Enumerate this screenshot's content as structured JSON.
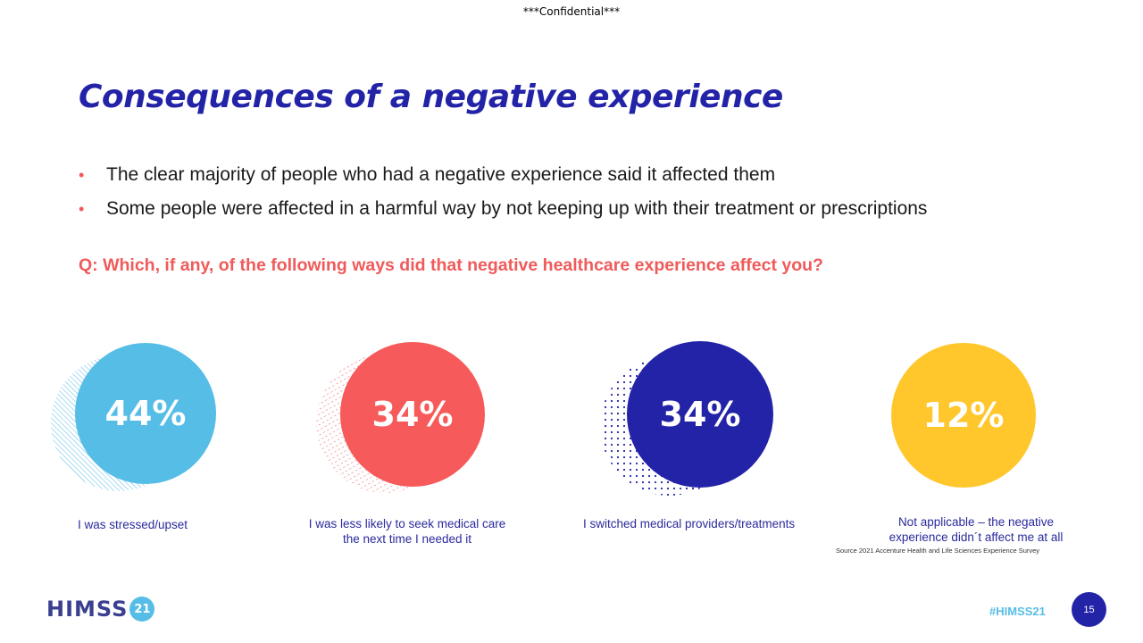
{
  "header": {
    "confidential": "***Confidential***"
  },
  "slide": {
    "title": "Consequences of a negative experience",
    "bullets": [
      "The clear majority of people who had a negative experience said it affected them",
      "Some people were affected in a harmful way by not keeping up with their treatment or prescriptions"
    ],
    "question": "Q: Which, if any, of the following ways did that negative healthcare experience affect you?"
  },
  "stats": [
    {
      "value": "44%",
      "caption": "I was stressed/upset",
      "color": "#56bde6"
    },
    {
      "value": "34%",
      "caption_line1": "I was less likely to seek medical care",
      "caption_line2": "the next time I needed it",
      "color": "#f65a5a"
    },
    {
      "value": "34%",
      "caption": "I switched medical providers/treatments",
      "color": "#2323a8"
    },
    {
      "value": "12%",
      "caption_line1": "Not applicable – the negative",
      "caption_line2": "experience didn´t affect me at all",
      "color": "#ffc72c"
    }
  ],
  "source": "Source 2021 Accenture Health and Life Sciences Experience Survey",
  "footer": {
    "logo_text": "HIMSS",
    "logo_badge": "21",
    "hashtag": "#HIMSS21",
    "page_number": "15"
  },
  "colors": {
    "title": "#2323a8",
    "accent_red": "#f05a5a",
    "light_blue": "#56bde6"
  }
}
